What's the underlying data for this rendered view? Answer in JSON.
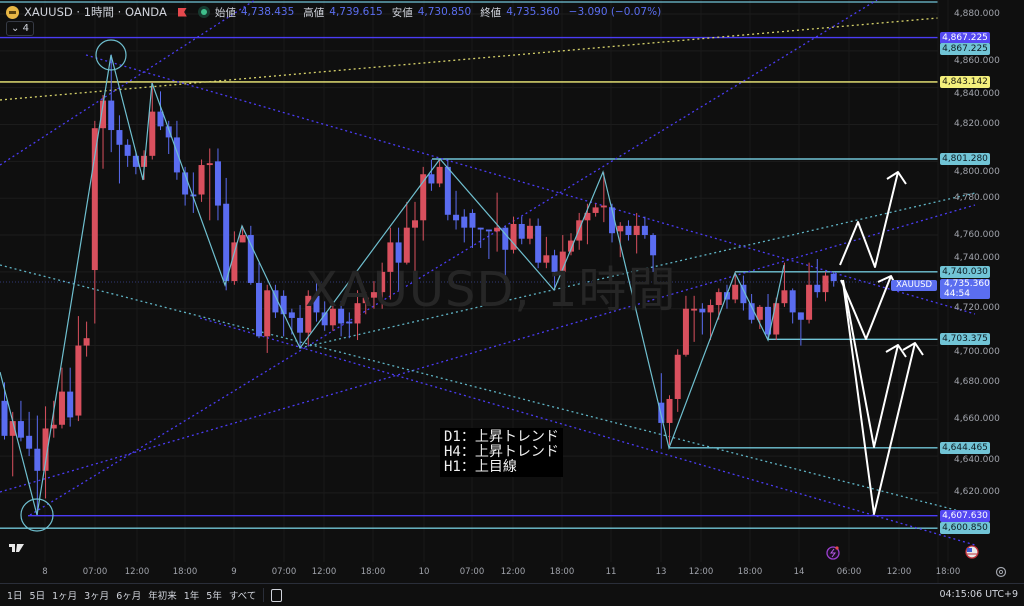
{
  "header": {
    "symbol": "XAUUSD · 1時間 · OANDA",
    "ohlc": [
      {
        "label": "始値",
        "value": "4,738.435"
      },
      {
        "label": "高値",
        "value": "4,739.615"
      },
      {
        "label": "安値",
        "value": "4,730.850"
      },
      {
        "label": "終値",
        "value": "4,735.360"
      }
    ],
    "change": "−3.090 (−0.07%)",
    "indicator_chip": "4"
  },
  "watermark": "XAUUSD, 1時間",
  "note_lines": [
    "D1：上昇トレンド",
    "H4：上昇トレンド",
    "H1：上目線"
  ],
  "current_price": {
    "symbol": "XAUUSD",
    "price": "4,735.360",
    "countdown": "44:54"
  },
  "price_lines": [
    {
      "price": 4867.225,
      "label": "4,867.225",
      "color": "blue"
    },
    {
      "price": 4867.225,
      "label": "4,867.225",
      "color": "cyan"
    },
    {
      "price": 4843.142,
      "label": "4,843.142",
      "color": "yellow"
    },
    {
      "price": 4801.28,
      "label": "4,801.280",
      "color": "cyan"
    },
    {
      "price": 4740.03,
      "label": "4,740.030",
      "color": "cyan"
    },
    {
      "price": 4703.375,
      "label": "4,703.375",
      "color": "cyan"
    },
    {
      "price": 4644.465,
      "label": "4,644.465",
      "color": "cyan"
    },
    {
      "price": 4607.63,
      "label": "4,607.630",
      "color": "blue"
    },
    {
      "price": 4600.85,
      "label": "4,600.850",
      "color": "cyan"
    }
  ],
  "colors": {
    "up": "#d9505e",
    "down": "#5a6cf0",
    "cyan": "#71c4d6",
    "blue": "#4b3cf5",
    "yellow": "#f4ef7b"
  },
  "chart_data": {
    "type": "candlestick",
    "ylim": [
      4600,
      4880
    ],
    "y_ticks": [
      "4,880.000",
      "4,860.000",
      "4,840.000",
      "4,820.000",
      "4,800.000",
      "4,780.000",
      "4,760.000",
      "4,740.000",
      "4,720.000",
      "4,700.000",
      "4,680.000",
      "4,660.000",
      "4,640.000",
      "4,620.000"
    ],
    "x_ticks": [
      "8",
      "07:00",
      "12:00",
      "18:00",
      "9",
      "07:00",
      "12:00",
      "18:00",
      "10",
      "07:00",
      "12:00",
      "18:00",
      "11",
      "13",
      "12:00",
      "18:00",
      "14",
      "06:00",
      "12:00",
      "18:00"
    ],
    "ohlc": [
      [
        4670,
        4680,
        4649,
        4651
      ],
      [
        4651,
        4664,
        4629,
        4659
      ],
      [
        4659,
        4670,
        4648,
        4650
      ],
      [
        4651,
        4664,
        4640,
        4644
      ],
      [
        4644,
        4662,
        4608,
        4632
      ],
      [
        4632,
        4667,
        4617,
        4655
      ],
      [
        4655,
        4670,
        4650,
        4657
      ],
      [
        4657,
        4688,
        4655,
        4675
      ],
      [
        4675,
        4688,
        4656,
        4661
      ],
      [
        4662,
        4716,
        4659,
        4700
      ],
      [
        4700,
        4713,
        4694,
        4704
      ],
      [
        4741,
        4822,
        4712,
        4818
      ],
      [
        4818,
        4836,
        4796,
        4833
      ],
      [
        4833,
        4858,
        4805,
        4817
      ],
      [
        4817,
        4825,
        4788,
        4809
      ],
      [
        4809,
        4812,
        4797,
        4803
      ],
      [
        4803,
        4805,
        4793,
        4797
      ],
      [
        4797,
        4806,
        4790,
        4803
      ],
      [
        4803,
        4843,
        4801,
        4827
      ],
      [
        4827,
        4838,
        4817,
        4819
      ],
      [
        4819,
        4822,
        4804,
        4813
      ],
      [
        4813,
        4822,
        4790,
        4794
      ],
      [
        4794,
        4797,
        4776,
        4782
      ],
      [
        4782,
        4794,
        4772,
        4781
      ],
      [
        4782,
        4801,
        4778,
        4798
      ],
      [
        4798,
        4807,
        4768,
        4799
      ],
      [
        4800,
        4807,
        4768,
        4776
      ],
      [
        4777,
        4791,
        4730,
        4735
      ],
      [
        4735,
        4762,
        4733,
        4756
      ],
      [
        4756,
        4765,
        4756,
        4760
      ],
      [
        4760,
        4765,
        4733,
        4734
      ],
      [
        4734,
        4745,
        4704,
        4705
      ],
      [
        4705,
        4733,
        4696,
        4730
      ],
      [
        4730,
        4733,
        4715,
        4718
      ],
      [
        4727,
        4730,
        4705,
        4717
      ],
      [
        4718,
        4720,
        4706,
        4715
      ],
      [
        4715,
        4722,
        4699,
        4707
      ],
      [
        4707,
        4730,
        4700,
        4727
      ],
      [
        4727,
        4734,
        4713,
        4718
      ],
      [
        4718,
        4724,
        4708,
        4711
      ],
      [
        4711,
        4722,
        4708,
        4720
      ],
      [
        4720,
        4724,
        4705,
        4712
      ],
      [
        4713,
        4718,
        4704,
        4712
      ],
      [
        4712,
        4730,
        4703,
        4723
      ],
      [
        4723,
        4729,
        4717,
        4726
      ],
      [
        4726,
        4735,
        4720,
        4729
      ],
      [
        4729,
        4745,
        4720,
        4740
      ],
      [
        4740,
        4764,
        4725,
        4756
      ],
      [
        4756,
        4764,
        4730,
        4745
      ],
      [
        4745,
        4778,
        4744,
        4764
      ],
      [
        4764,
        4778,
        4740,
        4768
      ],
      [
        4768,
        4797,
        4757,
        4793
      ],
      [
        4793,
        4801,
        4784,
        4788
      ],
      [
        4788,
        4801,
        4786,
        4797
      ],
      [
        4797,
        4801,
        4768,
        4771
      ],
      [
        4771,
        4784,
        4763,
        4768
      ],
      [
        4770,
        4774,
        4756,
        4764
      ],
      [
        4772,
        4774,
        4753,
        4764
      ],
      [
        4764,
        4764,
        4753,
        4763
      ],
      [
        4763,
        4763,
        4747,
        4762
      ],
      [
        4762,
        4783,
        4751,
        4764
      ],
      [
        4764,
        4765,
        4734,
        4752
      ],
      [
        4752,
        4770,
        4750,
        4766
      ],
      [
        4766,
        4770,
        4755,
        4758
      ],
      [
        4758,
        4769,
        4755,
        4765
      ],
      [
        4765,
        4769,
        4742,
        4745
      ],
      [
        4745,
        4759,
        4742,
        4749
      ],
      [
        4749,
        4752,
        4730,
        4740
      ],
      [
        4740,
        4760,
        4738,
        4751
      ],
      [
        4751,
        4761,
        4749,
        4757
      ],
      [
        4757,
        4772,
        4752,
        4768
      ],
      [
        4768,
        4777,
        4755,
        4772
      ],
      [
        4772,
        4777,
        4770,
        4775
      ],
      [
        4775,
        4794,
        4767,
        4776
      ],
      [
        4775,
        4777,
        4756,
        4761
      ],
      [
        4762,
        4767,
        4748,
        4765
      ],
      [
        4765,
        4768,
        4757,
        4760
      ],
      [
        4760,
        4772,
        4750,
        4765
      ],
      [
        4765,
        4770,
        4758,
        4760
      ],
      [
        4760,
        4761,
        4740,
        4749
      ],
      [
        4669,
        4685,
        4644,
        4658
      ],
      [
        4658,
        4673,
        4646,
        4671
      ],
      [
        4671,
        4698,
        4664,
        4695
      ],
      [
        4695,
        4727,
        4694,
        4720
      ],
      [
        4719,
        4727,
        4702,
        4720
      ],
      [
        4720,
        4723,
        4706,
        4718
      ],
      [
        4718,
        4725,
        4703,
        4722
      ],
      [
        4722,
        4731,
        4714,
        4729
      ],
      [
        4729,
        4733,
        4720,
        4725
      ],
      [
        4725,
        4740,
        4723,
        4733
      ],
      [
        4733,
        4738,
        4719,
        4723
      ],
      [
        4723,
        4728,
        4712,
        4714
      ],
      [
        4714,
        4722,
        4709,
        4721
      ],
      [
        4721,
        4728,
        4703,
        4706
      ],
      [
        4706,
        4726,
        4703,
        4723
      ],
      [
        4723,
        4745,
        4721,
        4730
      ],
      [
        4730,
        4731,
        4712,
        4718
      ],
      [
        4718,
        4718,
        4700,
        4714
      ],
      [
        4714,
        4745,
        4712,
        4733
      ],
      [
        4733,
        4747,
        4726,
        4729
      ],
      [
        4729,
        4740,
        4724,
        4738
      ],
      [
        4739,
        4740,
        4732,
        4735
      ]
    ]
  },
  "bottom": {
    "ranges": [
      "1日",
      "5日",
      "1ヶ月",
      "3ヶ月",
      "6ヶ月",
      "年初来",
      "1年",
      "5年",
      "すべて"
    ],
    "clock": "04:15:06 UTC+9"
  }
}
